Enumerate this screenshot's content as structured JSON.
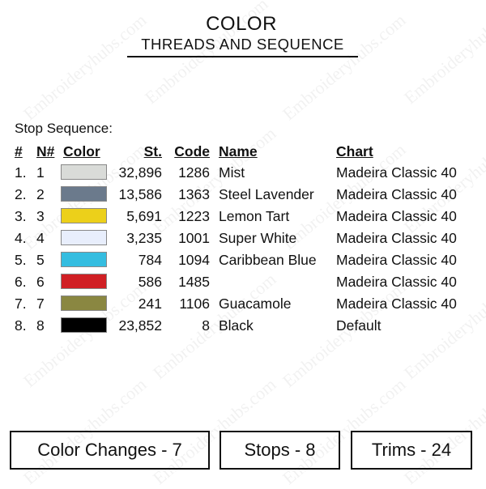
{
  "watermark": "Embroideryhubs.com",
  "title": "COLOR",
  "subtitle": "THREADS AND SEQUENCE",
  "stop_sequence_label": "Stop Sequence:",
  "table": {
    "headers": {
      "idx": "#",
      "n": "N#",
      "color": "Color",
      "st": "St.",
      "code": "Code",
      "name": "Name",
      "chart": "Chart"
    },
    "rows": [
      {
        "idx": "1.",
        "n": "1",
        "swatch": "#d9dbd8",
        "st": "32,896",
        "code": "1286",
        "name": "Mist",
        "chart": "Madeira Classic 40"
      },
      {
        "idx": "2.",
        "n": "2",
        "swatch": "#6b7a8c",
        "st": "13,586",
        "code": "1363",
        "name": "Steel Lavender",
        "chart": "Madeira Classic 40"
      },
      {
        "idx": "3.",
        "n": "3",
        "swatch": "#ecd01a",
        "st": "5,691",
        "code": "1223",
        "name": "Lemon Tart",
        "chart": "Madeira Classic 40"
      },
      {
        "idx": "4.",
        "n": "4",
        "swatch": "#e8eefc",
        "st": "3,235",
        "code": "1001",
        "name": "Super White",
        "chart": "Madeira Classic 40"
      },
      {
        "idx": "5.",
        "n": "5",
        "swatch": "#35bde0",
        "st": "784",
        "code": "1094",
        "name": "Caribbean Blue",
        "chart": "Madeira Classic 40"
      },
      {
        "idx": "6.",
        "n": "6",
        "swatch": "#d01f24",
        "st": "586",
        "code": "1485",
        "name": "",
        "chart": "Madeira Classic 40"
      },
      {
        "idx": "7.",
        "n": "7",
        "swatch": "#8a8741",
        "st": "241",
        "code": "1106",
        "name": "Guacamole",
        "chart": "Madeira Classic 40"
      },
      {
        "idx": "8.",
        "n": "8",
        "swatch": "#000000",
        "st": "23,852",
        "code": "8",
        "name": "Black",
        "chart": "Default"
      }
    ]
  },
  "summary": {
    "color_changes": "Color Changes - 7",
    "stops": "Stops -  8",
    "trims": "Trims - 24"
  }
}
